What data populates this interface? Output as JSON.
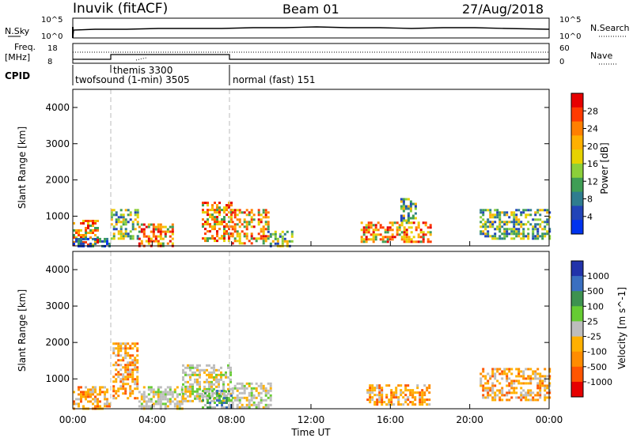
{
  "header": {
    "station": "Inuvik (fitACF)",
    "beam": "Beam 01",
    "date": "27/Aug/2018"
  },
  "summary_panel": {
    "nsky_label": "N.Sky",
    "nsky_ticks": [
      "10^5",
      "10^0"
    ],
    "nsearch_label": "N.Search",
    "nsearch_ticks": [
      "10^5",
      "10^0"
    ],
    "freq_label": "Freq.",
    "freq_unit": "[MHz]",
    "freq_ticks": [
      "18",
      "8"
    ],
    "nave_label": "Nave",
    "nave_ticks": [
      "60",
      "0"
    ],
    "cpid_label": "CPID",
    "cpid_segments": [
      {
        "name": "twofsound (1-min) 3505",
        "start_h": 0,
        "end_h": 1.9
      },
      {
        "name": "themis 3300",
        "start_h": 1.9,
        "end_h": 3.5
      },
      {
        "name": "normal (fast) 151",
        "start_h": 8.0,
        "end_h": 24
      }
    ]
  },
  "chart_data": [
    {
      "type": "heatmap",
      "panel": "power",
      "xlabel": "",
      "ylabel": "Slant Range [km]",
      "xlim_hours": [
        0,
        24
      ],
      "ylim": [
        180,
        4500
      ],
      "yticks": [
        "4000",
        "3000",
        "2000",
        "1000"
      ],
      "colorbar": {
        "label": "Power [dB]",
        "ticks": [
          "28",
          "24",
          "20",
          "16",
          "12",
          "8",
          "4"
        ],
        "colors": [
          "#e60000",
          "#ff3a00",
          "#ff7f00",
          "#ffb000",
          "#e6d200",
          "#8ccf3a",
          "#3f9e55",
          "#2f7d8f",
          "#2244b8",
          "#0033ee"
        ]
      },
      "scatter_regions": [
        {
          "t0": 0.0,
          "t1": 1.3,
          "r0": 180,
          "r1": 900,
          "level": "high"
        },
        {
          "t0": 0.0,
          "t1": 1.9,
          "r0": 180,
          "r1": 400,
          "level": "low"
        },
        {
          "t0": 1.9,
          "t1": 3.3,
          "r0": 400,
          "r1": 1200,
          "level": "mid"
        },
        {
          "t0": 3.3,
          "t1": 5.0,
          "r0": 200,
          "r1": 800,
          "level": "high"
        },
        {
          "t0": 6.5,
          "t1": 8.0,
          "r0": 300,
          "r1": 1400,
          "level": "high"
        },
        {
          "t0": 8.0,
          "t1": 9.8,
          "r0": 250,
          "r1": 1200,
          "level": "high"
        },
        {
          "t0": 9.8,
          "t1": 11.0,
          "r0": 200,
          "r1": 600,
          "level": "mid"
        },
        {
          "t0": 14.5,
          "t1": 18.0,
          "r0": 300,
          "r1": 850,
          "level": "high"
        },
        {
          "t0": 16.5,
          "t1": 17.3,
          "r0": 900,
          "r1": 1500,
          "level": "mid"
        },
        {
          "t0": 20.5,
          "t1": 24.0,
          "r0": 400,
          "r1": 1200,
          "level": "mid"
        }
      ]
    },
    {
      "type": "heatmap",
      "panel": "velocity",
      "xlabel": "Time UT",
      "ylabel": "Slant Range [km]",
      "xlim_hours": [
        0,
        24
      ],
      "ylim": [
        180,
        4500
      ],
      "yticks": [
        "4000",
        "3000",
        "2000",
        "1000"
      ],
      "xticks": [
        "00:00",
        "04:00",
        "08:00",
        "12:00",
        "16:00",
        "20:00",
        "00:00"
      ],
      "colorbar": {
        "label": "Velocity [m s^-1]",
        "ticks": [
          "1000",
          "500",
          "100",
          "25",
          "-25",
          "-100",
          "-500",
          "-1000"
        ],
        "colors": [
          "#2233aa",
          "#3a6fc0",
          "#3d9250",
          "#66cc33",
          "#bdbdbd",
          "#ffb000",
          "#ff8c00",
          "#ff5500",
          "#e60000"
        ]
      },
      "scatter_regions": [
        {
          "t0": 0.0,
          "t1": 1.9,
          "r0": 180,
          "r1": 800,
          "level": "neg"
        },
        {
          "t0": 2.0,
          "t1": 3.3,
          "r0": 500,
          "r1": 2000,
          "level": "neg"
        },
        {
          "t0": 3.3,
          "t1": 5.5,
          "r0": 200,
          "r1": 800,
          "level": "zero"
        },
        {
          "t0": 5.5,
          "t1": 8.0,
          "r0": 400,
          "r1": 1400,
          "level": "zero"
        },
        {
          "t0": 6.5,
          "t1": 8.0,
          "r0": 200,
          "r1": 700,
          "level": "pos"
        },
        {
          "t0": 8.0,
          "t1": 10.0,
          "r0": 200,
          "r1": 900,
          "level": "zero"
        },
        {
          "t0": 14.8,
          "t1": 18.0,
          "r0": 300,
          "r1": 850,
          "level": "neg"
        },
        {
          "t0": 20.5,
          "t1": 24.0,
          "r0": 400,
          "r1": 1300,
          "level": "neg"
        }
      ]
    }
  ]
}
